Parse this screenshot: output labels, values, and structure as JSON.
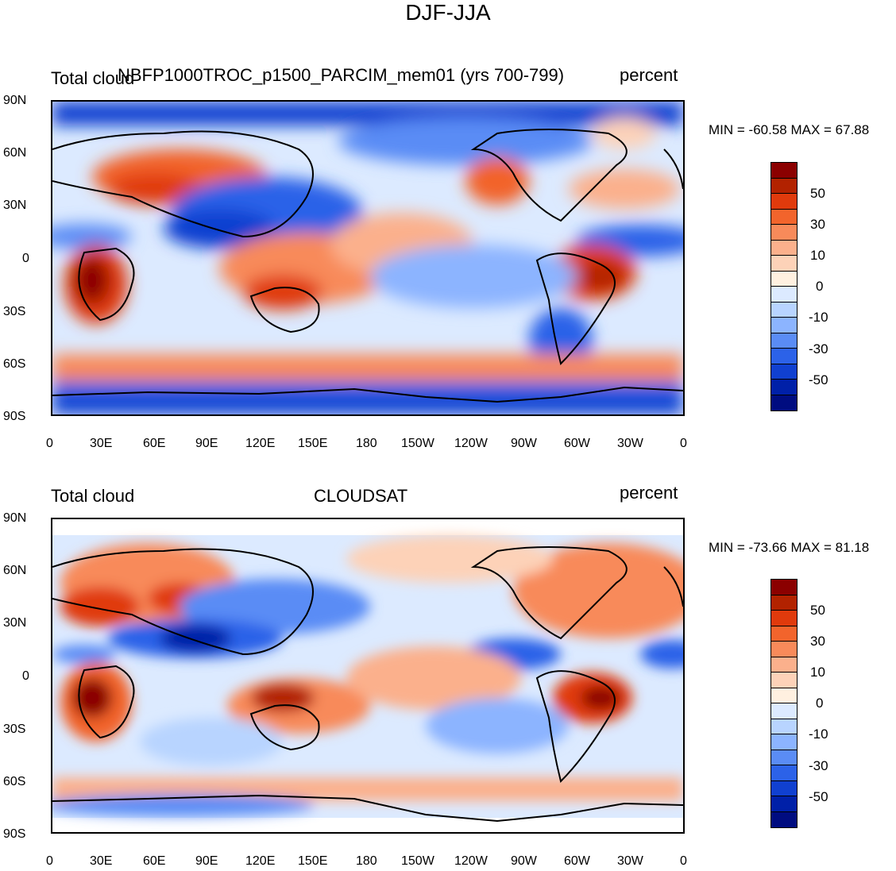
{
  "title": "DJF-JJA",
  "panels": [
    {
      "left_label": "Total cloud",
      "center_label": "NBFP1000TROC_p1500_PARCIM_mem01 (yrs 700-799)",
      "right_label": "percent",
      "minmax": "MIN = -60.58 MAX =  67.88"
    },
    {
      "left_label": "Total cloud",
      "center_label": "CLOUDSAT",
      "right_label": "percent",
      "minmax": "MIN = -73.66 MAX =  81.18"
    }
  ],
  "axes": {
    "x_ticks": [
      "0",
      "30E",
      "60E",
      "90E",
      "120E",
      "150E",
      "180",
      "150W",
      "120W",
      "90W",
      "60W",
      "30W",
      "0"
    ],
    "y_ticks": [
      "90N",
      "60N",
      "30N",
      "0",
      "30S",
      "60S",
      "90S"
    ]
  },
  "colorbar": {
    "labels": [
      "50",
      "30",
      "10",
      "0",
      "-10",
      "-30",
      "-50"
    ],
    "colors": [
      "#8b0000",
      "#b22200",
      "#e03a0c",
      "#f2642c",
      "#f88a5a",
      "#fbb08c",
      "#fdd2b8",
      "#fff0e0",
      "#dceaff",
      "#b8d4ff",
      "#8cb4ff",
      "#5a8cf5",
      "#2c62e8",
      "#1040d0",
      "#0020a8",
      "#000c80"
    ]
  },
  "chart_data": {
    "type": "heatmap",
    "title": "DJF-JJA",
    "xlabel": "",
    "ylabel": "",
    "xlim": [
      0,
      360
    ],
    "ylim": [
      -90,
      90
    ],
    "levels": [
      -60,
      -50,
      -40,
      -30,
      -20,
      -10,
      -5,
      0,
      5,
      10,
      20,
      30,
      40,
      50,
      60
    ],
    "series": [
      {
        "name": "NBFP1000TROC_p1500_PARCIM_mem01 (yrs 700-799)",
        "min": -60.58,
        "max": 67.88
      },
      {
        "name": "CLOUDSAT",
        "min": -73.66,
        "max": 81.18
      }
    ]
  }
}
